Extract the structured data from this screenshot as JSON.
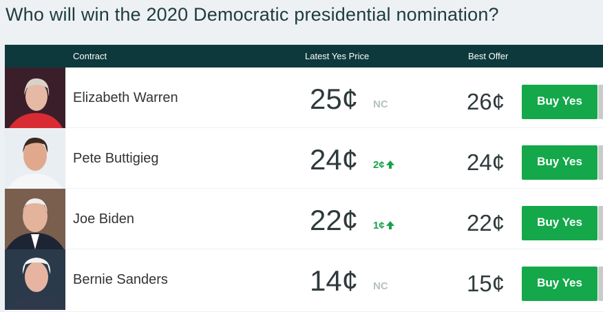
{
  "header": {
    "title": "Who will win the 2020 Democratic presidential nomination?"
  },
  "table": {
    "columns": [
      "Contract",
      "Latest Yes Price",
      "Best Offer"
    ],
    "rows": [
      {
        "name": "Elizabeth Warren",
        "price": "25¢",
        "change": "NC",
        "best_offer": "26¢",
        "button": "Buy Yes"
      },
      {
        "name": "Pete Buttigieg",
        "price": "24¢",
        "change": "2¢",
        "best_offer": "24¢",
        "button": "Buy Yes"
      },
      {
        "name": "Joe Biden",
        "price": "22¢",
        "change": "1¢",
        "best_offer": "22¢",
        "button": "Buy Yes"
      },
      {
        "name": "Bernie Sanders",
        "price": "14¢",
        "change": "NC",
        "best_offer": "15¢",
        "button": "Buy Yes"
      }
    ]
  }
}
